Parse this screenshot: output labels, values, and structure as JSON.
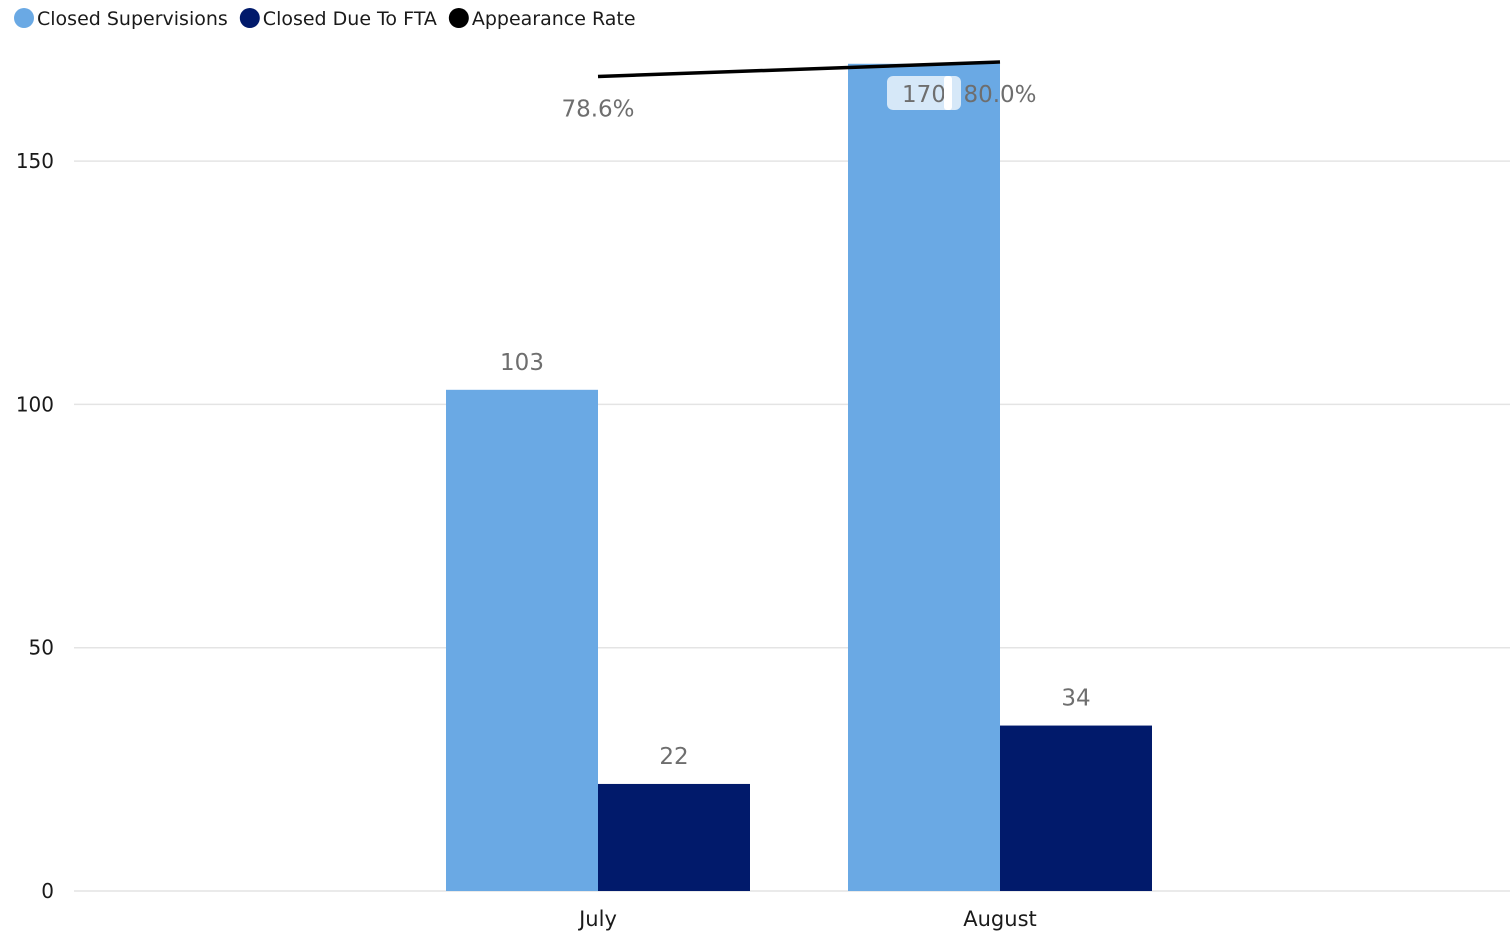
{
  "chart_data": {
    "type": "bar",
    "categories": [
      "July",
      "August"
    ],
    "series": [
      {
        "name": "Closed Supervisions",
        "type": "bar",
        "color": "#6aa9e4",
        "values": [
          103,
          170
        ],
        "labels": [
          "103",
          "170"
        ]
      },
      {
        "name": "Closed Due To FTA",
        "type": "bar",
        "color": "#011a6b",
        "values": [
          22,
          34
        ],
        "labels": [
          "22",
          "34"
        ]
      },
      {
        "name": "Appearance Rate",
        "type": "line",
        "color": "#000000",
        "values": [
          0.786,
          0.8
        ],
        "labels": [
          "78.6%",
          "80.0%"
        ]
      }
    ],
    "yticks": [
      0,
      50,
      100,
      150
    ],
    "ytick_labels": [
      "0",
      "50",
      "100",
      "150"
    ],
    "ylim": [
      0,
      170
    ],
    "y2lim": [
      0.0,
      0.8
    ],
    "grid": true,
    "legend_position": "top-left"
  }
}
